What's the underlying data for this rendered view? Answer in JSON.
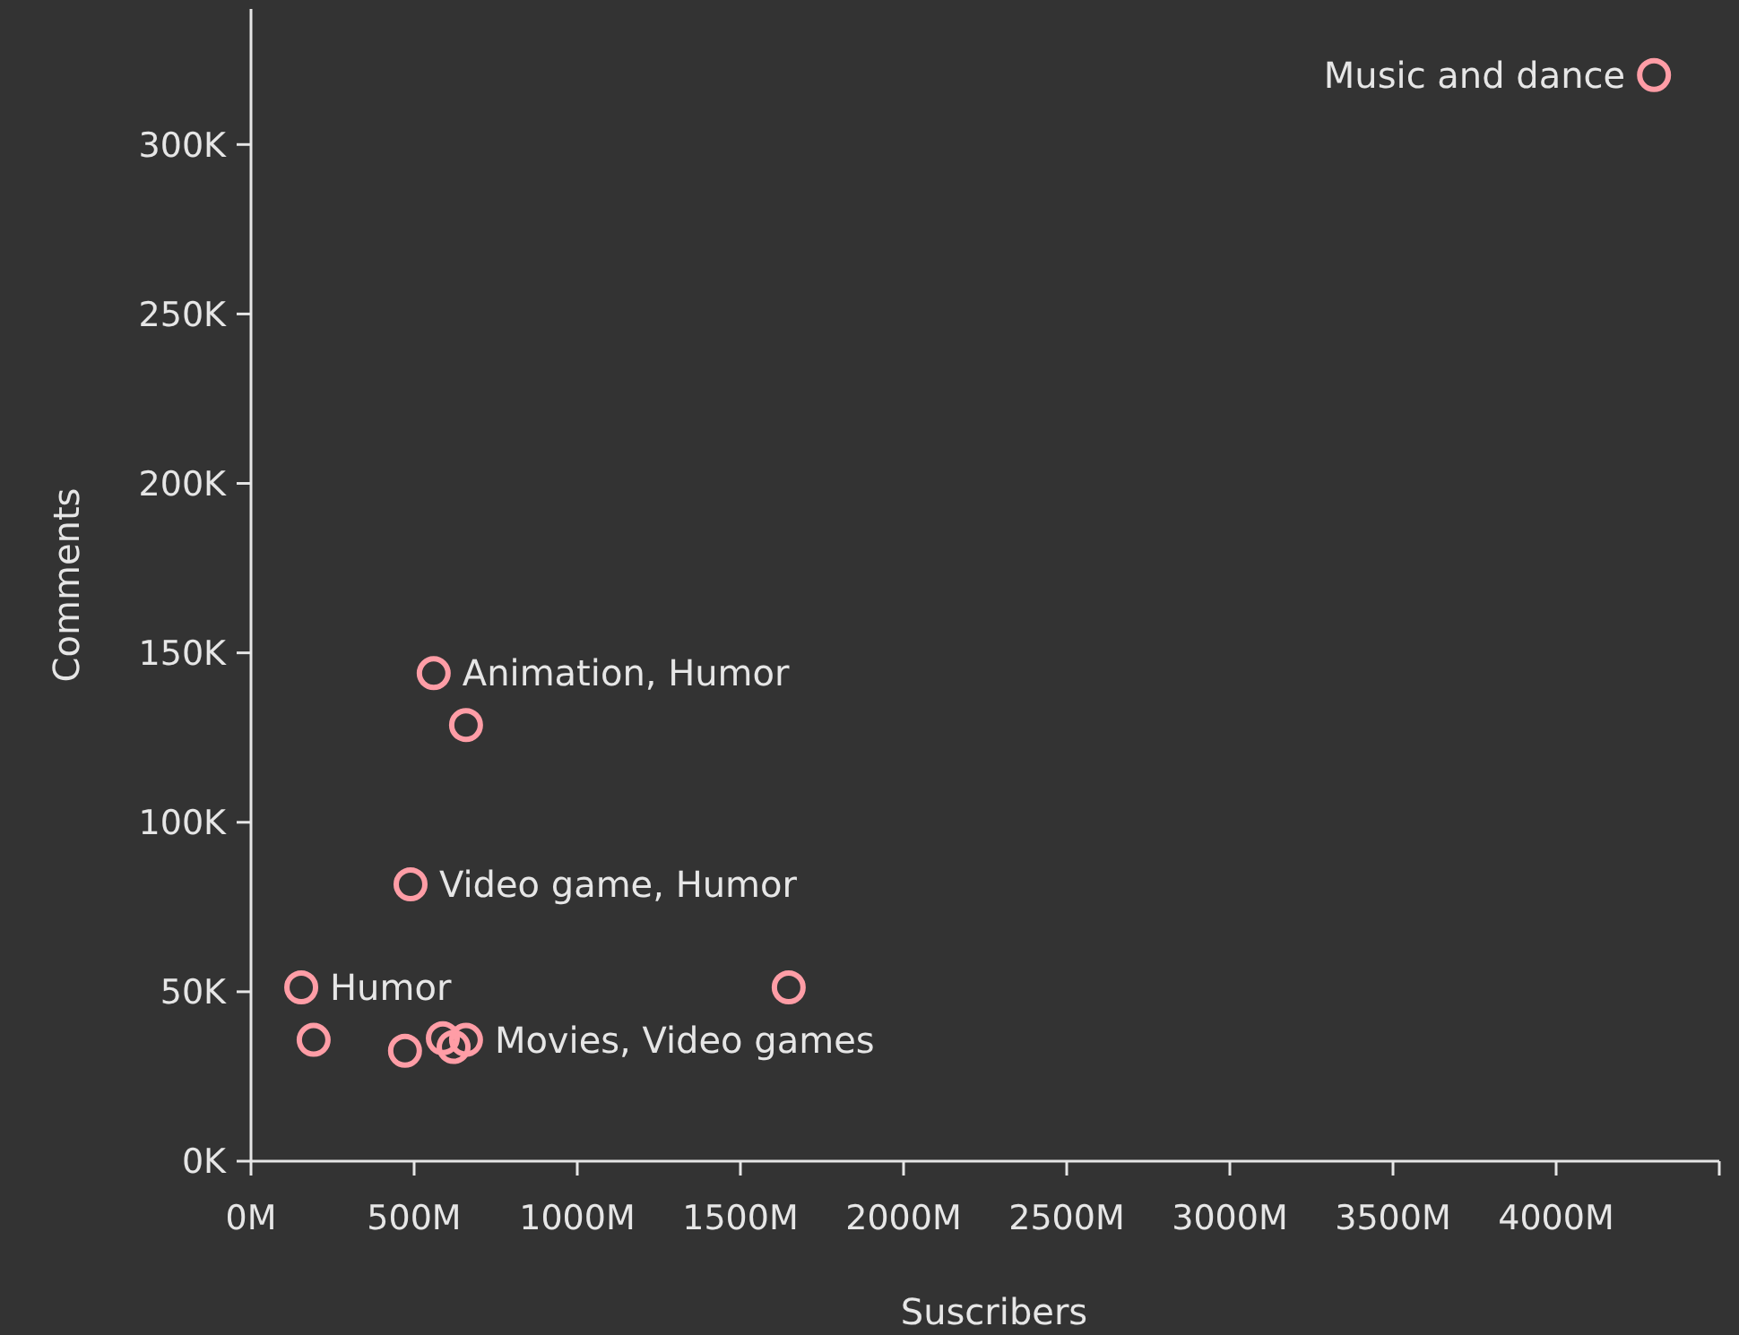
{
  "chart_data": {
    "type": "scatter",
    "xlabel": "Suscribers",
    "ylabel": "Comments",
    "xlim": [
      0,
      4500
    ],
    "ylim": [
      0,
      340
    ],
    "xticks": [
      {
        "value": 0,
        "label": "0M"
      },
      {
        "value": 500,
        "label": "500M"
      },
      {
        "value": 1000,
        "label": "1000M"
      },
      {
        "value": 1500,
        "label": "1500M"
      },
      {
        "value": 2000,
        "label": "2000M"
      },
      {
        "value": 2500,
        "label": "2500M"
      },
      {
        "value": 3000,
        "label": "3000M"
      },
      {
        "value": 3500,
        "label": "3500M"
      },
      {
        "value": 4000,
        "label": "4000M"
      },
      {
        "value": 4500,
        "label": null
      }
    ],
    "yticks": [
      {
        "value": 0,
        "label": "0K"
      },
      {
        "value": 50,
        "label": "50K"
      },
      {
        "value": 100,
        "label": "100K"
      },
      {
        "value": 150,
        "label": "150K"
      },
      {
        "value": 200,
        "label": "200K"
      },
      {
        "value": 250,
        "label": "250K"
      },
      {
        "value": 300,
        "label": "300K"
      }
    ],
    "x": [
      4300,
      560,
      659,
      489,
      154,
      192,
      472,
      588,
      621,
      659,
      1648
    ],
    "values": [
      320.5,
      144,
      128.7,
      81.7,
      51.3,
      35.8,
      32.6,
      36.3,
      33.7,
      35.8,
      51.3
    ],
    "color": "#ff9da6",
    "marker": "circle",
    "grid": false,
    "annotations": [
      {
        "text": "Music and dance",
        "x": 4300,
        "y": 320.5
      },
      {
        "text": "Animation, Humor",
        "x": 560,
        "y": 144
      },
      {
        "text": "Video game, Humor",
        "x": 489,
        "y": 81.7
      },
      {
        "text": "Humor",
        "x": 154,
        "y": 51.3
      },
      {
        "text": "Movies, Video games",
        "x": 659,
        "y": 35.8
      }
    ]
  }
}
